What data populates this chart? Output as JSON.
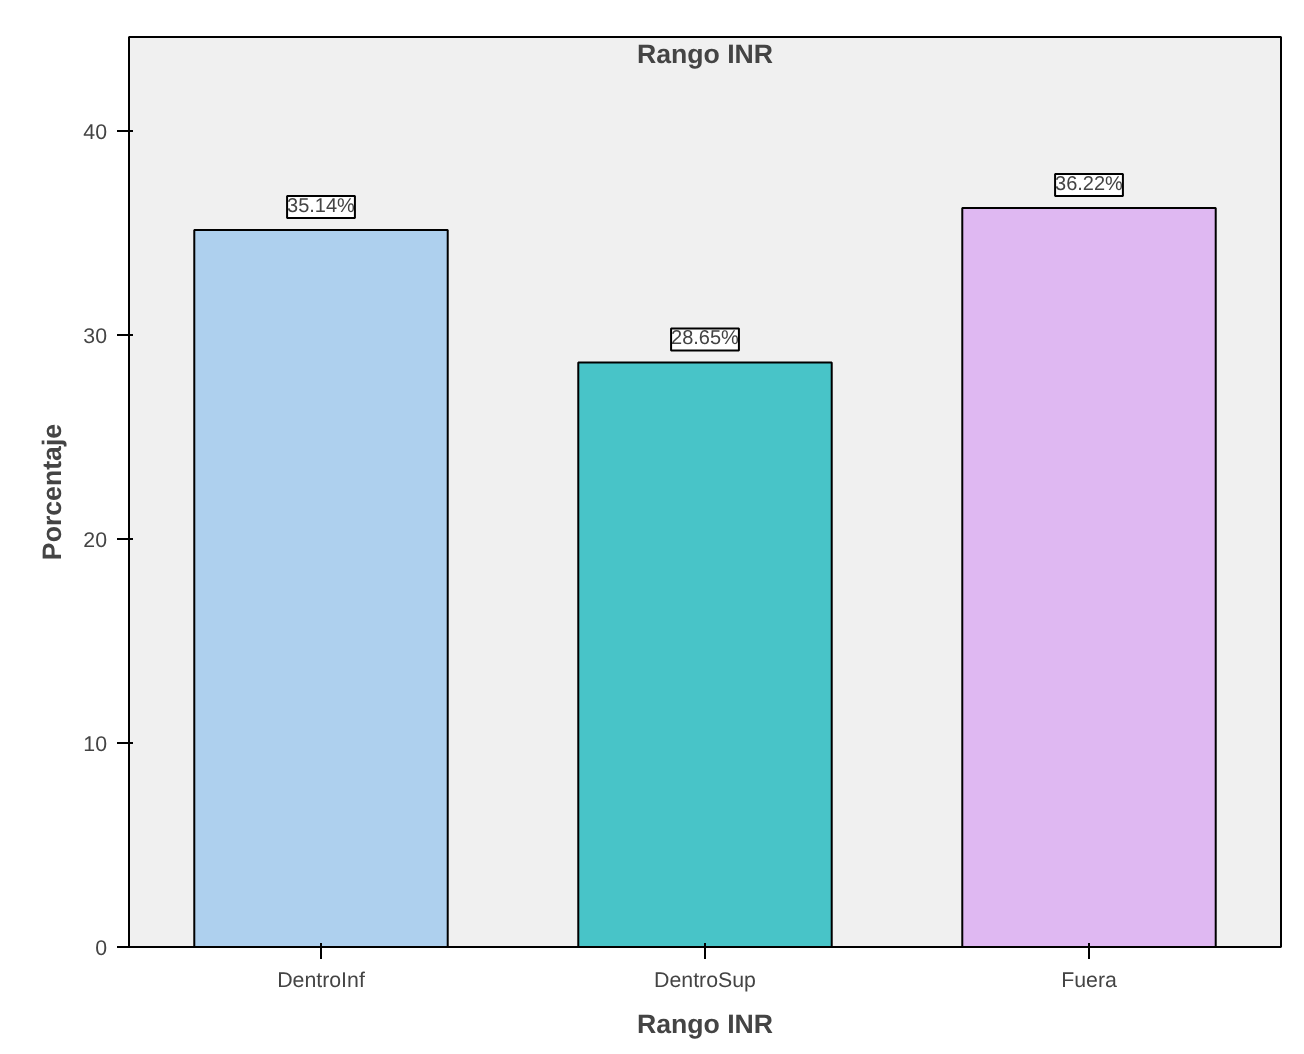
{
  "chart_data": {
    "type": "bar",
    "title": "Rango INR",
    "xlabel": "Rango INR",
    "ylabel": "Porcentaje",
    "categories": [
      "DentroInf",
      "DentroSup",
      "Fuera"
    ],
    "values": [
      35.14,
      28.65,
      36.22
    ],
    "colors": [
      "#aed0ee",
      "#48c4c8",
      "#dfb8f2"
    ],
    "value_labels": [
      "35.14%",
      "28.65%",
      "36.22%"
    ],
    "ylim": [
      0,
      44.6
    ],
    "yticks": [
      0,
      10,
      20,
      30,
      40
    ],
    "grid": false
  }
}
